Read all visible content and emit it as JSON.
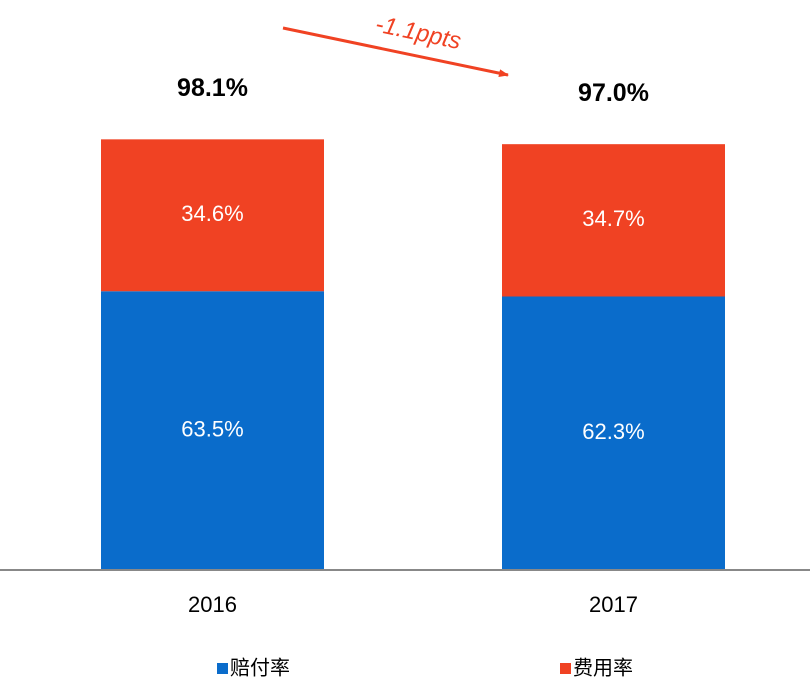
{
  "chart_data": {
    "type": "stacked_bar",
    "categories": [
      "2016",
      "2017"
    ],
    "series": [
      {
        "name": "赔付率",
        "color": "#0a6ccb",
        "values": [
          63.5,
          62.3
        ],
        "value_labels": [
          "63.5%",
          "62.3%"
        ]
      },
      {
        "name": "费用率",
        "color": "#f04223",
        "values": [
          34.6,
          34.7
        ],
        "value_labels": [
          "34.6%",
          "34.7%"
        ]
      }
    ],
    "totals": {
      "values": [
        98.1,
        97.0
      ],
      "value_labels": [
        "98.1%",
        "97.0%"
      ]
    },
    "annotation": "-1.1ppts"
  }
}
